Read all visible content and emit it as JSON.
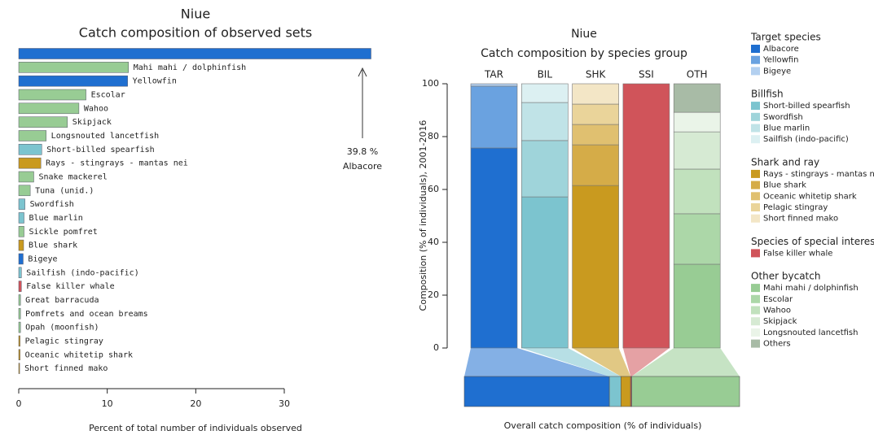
{
  "chart_data": [
    {
      "type": "bar",
      "orientation": "horizontal",
      "title": "Niue",
      "subtitle": "Catch composition of observed sets",
      "categories": [
        "Albacore",
        "Mahi mahi / dolphinfish",
        "Yellowfin",
        "Escolar",
        "Wahoo",
        "Skipjack",
        "Longsnouted lancetfish",
        "Short-billed spearfish",
        "Rays - stingrays - mantas nei",
        "Snake mackerel",
        "Tuna (unid.)",
        "Swordfish",
        "Blue marlin",
        "Sickle pomfret",
        "Blue shark",
        "Bigeye",
        "Sailfish (indo-pacific)",
        "False killer whale",
        "Great barracuda",
        "Pomfrets and ocean breams",
        "Opah (moonfish)",
        "Pelagic stingray",
        "Oceanic whitetip shark",
        "Short finned mako"
      ],
      "values": [
        39.8,
        12.4,
        12.3,
        7.6,
        6.8,
        5.5,
        3.1,
        2.6,
        2.5,
        1.7,
        1.3,
        0.7,
        0.6,
        0.6,
        0.55,
        0.5,
        0.3,
        0.3,
        0.2,
        0.2,
        0.2,
        0.15,
        0.15,
        0.1
      ],
      "value_labels": [
        "39.8 %",
        null,
        null,
        null,
        null,
        null,
        null,
        null,
        null,
        null,
        null,
        null,
        null,
        null,
        null,
        null,
        null,
        null,
        null,
        null,
        null,
        null,
        null,
        null
      ],
      "colors": [
        "#1f6fd0",
        "#98cc94",
        "#1f6fd0",
        "#98cc94",
        "#98cc94",
        "#98cc94",
        "#98cc94",
        "#7cc4cf",
        "#c99a1f",
        "#98cc94",
        "#98cc94",
        "#7cc4cf",
        "#7cc4cf",
        "#98cc94",
        "#c99a1f",
        "#1f6fd0",
        "#7cc4cf",
        "#d0545a",
        "#98cc94",
        "#98cc94",
        "#98cc94",
        "#c99a1f",
        "#c99a1f",
        "#c99a1f"
      ],
      "xlim": [
        0,
        30
      ],
      "xticks": [
        0,
        10,
        20,
        30
      ],
      "xlabel": "Percent of total number of individuals observed"
    },
    {
      "type": "stacked_bar",
      "title": "Niue",
      "subtitle": "Catch composition by species group",
      "ylabel": "Composition (% of individuals), 2001-2016",
      "xlabel": "Overall catch composition (% of individuals)",
      "ylim": [
        0,
        100
      ],
      "yticks": [
        0,
        20,
        40,
        60,
        80,
        100
      ],
      "groups": [
        {
          "code": "TAR",
          "name": "Target species",
          "share": 52.7,
          "species": [
            {
              "name": "Albacore",
              "color": "#1f6fd0",
              "value": 75.7
            },
            {
              "name": "Yellowfin",
              "color": "#6aa2e0",
              "value": 23.4
            },
            {
              "name": "Bigeye",
              "color": "#b3d0f0",
              "value": 0.9
            }
          ]
        },
        {
          "code": "BIL",
          "name": "Billfish",
          "share": 4.2,
          "species": [
            {
              "name": "Short-billed spearfish",
              "color": "#7cc4cf",
              "value": 57.2
            },
            {
              "name": "Swordfish",
              "color": "#9fd4da",
              "value": 21.3
            },
            {
              "name": "Blue marlin",
              "color": "#c0e3e7",
              "value": 14.4
            },
            {
              "name": "Sailfish (indo-pacific)",
              "color": "#dcf0f2",
              "value": 7.1
            }
          ]
        },
        {
          "code": "SHK",
          "name": "Shark and ray",
          "share": 3.5,
          "species": [
            {
              "name": "Rays - stingrays - mantas nei",
              "color": "#c99a1f",
              "value": 61.5
            },
            {
              "name": "Blue shark",
              "color": "#d5ac48",
              "value": 15.4
            },
            {
              "name": "Oceanic whitetip shark",
              "color": "#e0c070",
              "value": 7.7
            },
            {
              "name": "Pelagic stingray",
              "color": "#ead49a",
              "value": 7.7
            },
            {
              "name": "Short finned mako",
              "color": "#f3e6c6",
              "value": 7.7
            }
          ]
        },
        {
          "code": "SSI",
          "name": "Species of special interest",
          "share": 0.4,
          "species": [
            {
              "name": "False killer whale",
              "color": "#d0545a",
              "value": 100
            }
          ]
        },
        {
          "code": "OTH",
          "name": "Other bycatch",
          "share": 39.2,
          "species": [
            {
              "name": "Mahi mahi / dolphinfish",
              "color": "#98cc94",
              "value": 31.7
            },
            {
              "name": "Escolar",
              "color": "#acd7a8",
              "value": 19.1
            },
            {
              "name": "Wahoo",
              "color": "#c1e1bd",
              "value": 16.9
            },
            {
              "name": "Skipjack",
              "color": "#d6ead3",
              "value": 14.1
            },
            {
              "name": "Longsnouted lancetfish",
              "color": "#eaf4e8",
              "value": 7.4
            },
            {
              "name": "Others",
              "color": "#a8bba6",
              "value": 10.8
            }
          ]
        }
      ]
    }
  ]
}
